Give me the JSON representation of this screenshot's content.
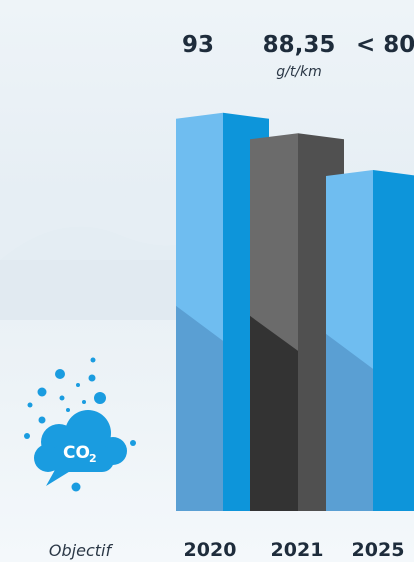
{
  "chart_data": {
    "type": "bar",
    "unit": "g/t/km",
    "categories": [
      "2020",
      "2021",
      "2025"
    ],
    "values": [
      93,
      88.35,
      80
    ],
    "value_labels": [
      "93",
      "88,35",
      "< 80"
    ],
    "caption": "Objectif"
  },
  "colors": {
    "blue_light": "#6fbdf0",
    "blue_dark": "#0d95da",
    "blue_mid": "#5a9fd3",
    "gray_light": "#6b6b6b",
    "gray_dark": "#505050",
    "gray_black": "#333333",
    "text": "#1e2c3b"
  },
  "badge": {
    "icon": "co2-cloud-icon",
    "text_main": "CO",
    "text_sub": "2"
  }
}
